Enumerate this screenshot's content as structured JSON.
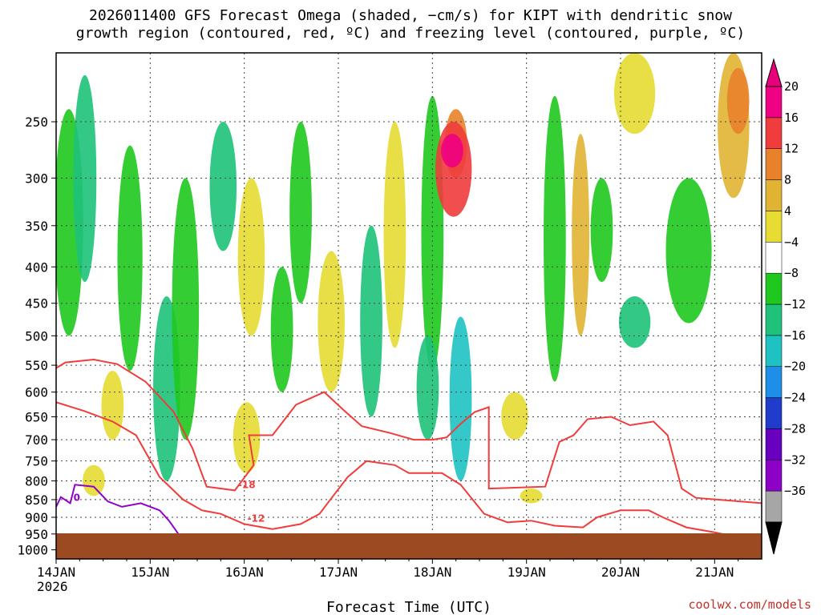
{
  "chart_data": {
    "type": "heatmap",
    "title": "2026011400 GFS Forecast Omega (shaded, −cm/s) for KIPT with dendritic snow",
    "subtitle": "growth region (contoured, red, ºC) and freezing level (contoured, purple, ºC)",
    "xlabel": "Forecast Time (UTC)",
    "credit": "coolwx.com/models",
    "x_ticks": [
      "14JAN",
      "15JAN",
      "16JAN",
      "17JAN",
      "18JAN",
      "19JAN",
      "20JAN",
      "21JAN"
    ],
    "x_year": "2026",
    "xlim_days": [
      0,
      7.5
    ],
    "y_ticks": [
      250,
      300,
      350,
      400,
      450,
      500,
      550,
      600,
      650,
      700,
      750,
      800,
      850,
      900,
      950,
      1000
    ],
    "ylim_hpa": [
      1030,
      200
    ],
    "y_scale": "log-pressure (inverted)",
    "grid": true,
    "colorbar": {
      "levels": [
        -36,
        -32,
        -28,
        -24,
        -20,
        -16,
        -12,
        -8,
        -4,
        4,
        8,
        12,
        16,
        20
      ],
      "labels": [
        "20",
        "16",
        "12",
        "8",
        "4",
        "−4",
        "−8",
        "−12",
        "−16",
        "−20",
        "−24",
        "−28",
        "−32",
        "−36"
      ],
      "colors": [
        "#a6a6a6",
        "#8c00c8",
        "#6800c0",
        "#1f3ccc",
        "#1e8ee8",
        "#1ec2c2",
        "#1ec27a",
        "#1ec81e",
        "#ffffff",
        "#e6dc32",
        "#e0b432",
        "#e8822a",
        "#f03c3c",
        "#f00082"
      ]
    },
    "series": [
      {
        "name": "-18",
        "color": "#f03c3c",
        "points": [
          [
            0,
            555
          ],
          [
            0.1,
            545
          ],
          [
            0.4,
            540
          ],
          [
            0.65,
            548
          ],
          [
            0.95,
            580
          ],
          [
            1.25,
            640
          ],
          [
            1.45,
            720
          ],
          [
            1.6,
            815
          ],
          [
            1.9,
            825
          ],
          [
            2.1,
            760
          ],
          [
            2.05,
            690
          ],
          [
            2.3,
            690
          ],
          [
            2.55,
            625
          ],
          [
            2.85,
            600
          ],
          [
            3.05,
            635
          ],
          [
            3.25,
            670
          ],
          [
            3.55,
            685
          ],
          [
            3.8,
            700
          ],
          [
            4.0,
            700
          ],
          [
            4.15,
            695
          ],
          [
            4.3,
            665
          ],
          [
            4.45,
            640
          ],
          [
            4.6,
            630
          ],
          [
            4.6,
            820
          ],
          [
            5.2,
            815
          ],
          [
            5.35,
            705
          ],
          [
            5.5,
            690
          ],
          [
            5.65,
            655
          ],
          [
            5.9,
            650
          ],
          [
            6.1,
            668
          ],
          [
            6.35,
            660
          ],
          [
            6.5,
            690
          ],
          [
            6.65,
            820
          ],
          [
            6.8,
            845
          ],
          [
            7.5,
            860
          ]
        ]
      },
      {
        "name": "-12",
        "color": "#f03c3c",
        "points": [
          [
            0,
            620
          ],
          [
            0.3,
            638
          ],
          [
            0.6,
            660
          ],
          [
            0.85,
            690
          ],
          [
            1.1,
            790
          ],
          [
            1.35,
            850
          ],
          [
            1.55,
            880
          ],
          [
            1.75,
            890
          ],
          [
            2.0,
            920
          ],
          [
            2.3,
            935
          ],
          [
            2.6,
            920
          ],
          [
            2.8,
            890
          ],
          [
            2.9,
            855
          ],
          [
            3.1,
            790
          ],
          [
            3.3,
            750
          ],
          [
            3.45,
            755
          ],
          [
            3.6,
            760
          ],
          [
            3.75,
            780
          ],
          [
            4.0,
            780
          ],
          [
            4.1,
            780
          ],
          [
            4.3,
            810
          ],
          [
            4.55,
            890
          ],
          [
            4.8,
            915
          ],
          [
            5.05,
            910
          ],
          [
            5.3,
            925
          ],
          [
            5.6,
            930
          ],
          [
            5.75,
            900
          ],
          [
            6.0,
            880
          ],
          [
            6.3,
            880
          ],
          [
            6.45,
            900
          ],
          [
            6.7,
            930
          ],
          [
            7.0,
            945
          ],
          [
            7.25,
            960
          ],
          [
            7.5,
            970
          ]
        ]
      },
      {
        "name": "0",
        "color": "#9100c8",
        "points": [
          [
            0,
            870
          ],
          [
            0.05,
            843
          ],
          [
            0.15,
            860
          ],
          [
            0.2,
            810
          ],
          [
            0.4,
            815
          ],
          [
            0.55,
            855
          ],
          [
            0.7,
            870
          ],
          [
            0.9,
            860
          ],
          [
            1.1,
            880
          ],
          [
            1.2,
            910
          ],
          [
            1.3,
            950
          ]
        ]
      }
    ]
  }
}
